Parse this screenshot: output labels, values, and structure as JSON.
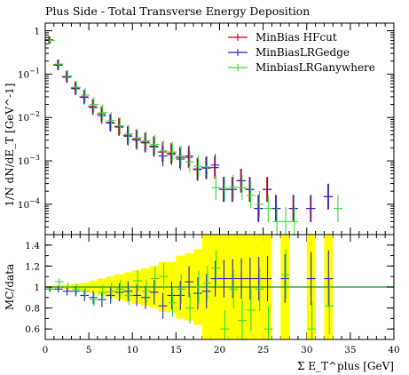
{
  "chart_data": [
    {
      "type": "scatter",
      "title": "Plus Side - Total Transverse Energy Deposition",
      "ylabel": "1/N dN/dE_T [GeV^-1]",
      "yscale": "log",
      "ylim": [
        2e-05,
        1.5
      ],
      "xlim": [
        0,
        40
      ],
      "y_tick_labels": [
        "1",
        "10^-1",
        "10^-2",
        "10^-3",
        "10^-4"
      ],
      "legend_position": "top-right",
      "series": [
        {
          "name": "MinBias HFcut",
          "color": "#cc0000",
          "bin_width": 1,
          "x": [
            0.5,
            1.5,
            2.5,
            3.5,
            4.5,
            5.5,
            6.5,
            7.5,
            8.5,
            9.5,
            10.5,
            11.5,
            12.5,
            13.5,
            14.5,
            15.5,
            16.5,
            17.5,
            18.5,
            19.5,
            20.5,
            21.5,
            22.5,
            23.5,
            24.5,
            25.5,
            26.5,
            27.5,
            28.5,
            29.5,
            30.5,
            31.5,
            32.5,
            33.5
          ],
          "y": [
            0.62,
            0.165,
            0.088,
            0.048,
            0.03,
            0.018,
            0.012,
            0.0077,
            0.0062,
            0.0039,
            0.0032,
            0.0027,
            0.0022,
            0.0016,
            0.0015,
            0.0012,
            0.0012,
            0.00065,
            0.0007,
            0.0007,
            0.00022,
            0.00022,
            0.00035,
            0.00022,
            8e-05,
            0.00022,
            8e-05,
            null,
            8e-05,
            null,
            8e-05,
            null,
            0.00015,
            null
          ]
        },
        {
          "name": "MinBiasLRGedge",
          "color": "#2222cc",
          "bin_width": 1,
          "x": [
            0.5,
            1.5,
            2.5,
            3.5,
            4.5,
            5.5,
            6.5,
            7.5,
            8.5,
            9.5,
            10.5,
            11.5,
            12.5,
            13.5,
            14.5,
            15.5,
            16.5,
            17.5,
            18.5,
            19.5,
            20.5,
            21.5,
            22.5,
            23.5,
            24.5,
            25.5,
            26.5,
            27.5,
            28.5,
            29.5,
            30.5,
            31.5,
            32.5,
            33.5
          ],
          "y": [
            0.6,
            0.16,
            0.085,
            0.046,
            0.029,
            0.017,
            0.011,
            0.0074,
            0.006,
            0.0037,
            0.003,
            0.0026,
            0.0021,
            0.0013,
            0.0014,
            0.0011,
            0.0013,
            0.00063,
            0.00068,
            0.0008,
            0.00022,
            0.00022,
            0.00035,
            0.00022,
            8e-05,
            0.00022,
            8e-05,
            null,
            8e-05,
            null,
            8e-05,
            null,
            0.00015,
            null
          ]
        },
        {
          "name": "MinbiasLRGanywhere",
          "color": "#33dd33",
          "bin_width": 1,
          "x": [
            0.5,
            1.5,
            2.5,
            3.5,
            4.5,
            5.5,
            6.5,
            7.5,
            8.5,
            9.5,
            10.5,
            11.5,
            12.5,
            13.5,
            14.5,
            15.5,
            16.5,
            17.5,
            18.5,
            19.5,
            20.5,
            21.5,
            22.5,
            23.5,
            24.5,
            25.5,
            26.5,
            27.5,
            28.5,
            29.5,
            30.5,
            31.5,
            32.5,
            33.5
          ],
          "y": [
            0.6,
            0.17,
            0.09,
            0.05,
            0.033,
            0.02,
            0.013,
            0.0085,
            0.0064,
            0.0042,
            0.0034,
            0.0029,
            0.0024,
            0.0017,
            0.0016,
            0.0013,
            0.00095,
            0.00075,
            0.00072,
            0.00024,
            0.00023,
            0.00025,
            0.00024,
            0.00016,
            0.0001,
            8e-05,
            4e-05,
            4e-05,
            4e-05,
            null,
            null,
            null,
            null,
            8e-05
          ]
        }
      ]
    },
    {
      "type": "scatter",
      "ylabel": "MC/data",
      "xlabel": "Σ E_T^plus [GeV]",
      "xlim": [
        0,
        40
      ],
      "ylim": [
        0.5,
        1.5
      ],
      "x_ticks": [
        0,
        5,
        10,
        15,
        20,
        25,
        30,
        35,
        40
      ],
      "y_ticks": [
        0.6,
        0.8,
        1,
        1.2,
        1.4
      ],
      "reference_line": {
        "y": 1,
        "color": "#33aa33"
      },
      "uncertainty_band": {
        "color": "#ffff00",
        "x": [
          0.5,
          1.5,
          2.5,
          3.5,
          4.5,
          5.5,
          6.5,
          7.5,
          8.5,
          9.5,
          10.5,
          11.5,
          12.5,
          13.5,
          14.5,
          15.5,
          16.5,
          17.5,
          18.5,
          19.5,
          20.5,
          21.5,
          22.5,
          23.5,
          24.5,
          25.5,
          26.5,
          27.5,
          28.5,
          29.5,
          30.5,
          31.5,
          32.5,
          33.5
        ],
        "half_width": [
          0.01,
          0.015,
          0.02,
          0.03,
          0.04,
          0.06,
          0.08,
          0.1,
          0.12,
          0.14,
          0.16,
          0.18,
          0.2,
          0.24,
          0.24,
          0.3,
          0.32,
          0.36,
          0.5,
          1,
          1,
          1,
          1,
          1,
          1,
          1,
          null,
          1,
          null,
          null,
          1,
          null,
          1,
          null
        ]
      },
      "series": [
        {
          "name": "MinBiasLRGedge",
          "color": "#2222cc",
          "x": [
            0.5,
            1.5,
            2.5,
            3.5,
            4.5,
            5.5,
            6.5,
            7.5,
            8.5,
            9.5,
            10.5,
            11.5,
            12.5,
            13.5,
            14.5,
            15.5,
            16.5,
            17.5,
            18.5,
            19.5,
            20.5,
            21.5,
            22.5,
            23.5,
            24.5,
            25.5,
            26.5,
            27.5,
            28.5,
            29.5,
            30.5,
            31.5,
            32.5,
            33.5
          ],
          "y": [
            0.98,
            0.98,
            0.96,
            0.96,
            0.92,
            0.9,
            0.88,
            0.92,
            0.95,
            0.96,
            0.92,
            0.9,
            0.95,
            0.82,
            0.92,
            0.92,
            1.05,
            0.94,
            0.96,
            1.08,
            1.08,
            1.08,
            1.08,
            1.08,
            1.08,
            1.08,
            null,
            1.08,
            null,
            null,
            1.08,
            null,
            1.08,
            null
          ]
        },
        {
          "name": "MinbiasLRGanywhere",
          "color": "#33dd33",
          "x": [
            0.5,
            1.5,
            2.5,
            3.5,
            4.5,
            5.5,
            6.5,
            7.5,
            8.5,
            9.5,
            10.5,
            11.5,
            12.5,
            13.5,
            14.5,
            15.5,
            16.5,
            17.5,
            18.5,
            19.5,
            20.5,
            21.5,
            22.5,
            23.5,
            24.5,
            25.5,
            26.5,
            27.5,
            28.5,
            29.5,
            30.5,
            31.5,
            32.5,
            33.5
          ],
          "y": [
            0.98,
            1.05,
            1.0,
            0.98,
            0.96,
            0.88,
            0.95,
            0.96,
            0.98,
            0.92,
            1.06,
            0.96,
            1.08,
            1.1,
            0.85,
            0.98,
            0.8,
            1.0,
            1.04,
            1.18,
            0.6,
            0.98,
            0.68,
            0.78,
            0.98,
            0.6,
            null,
            1.12,
            null,
            null,
            0.6,
            null,
            0.82,
            null
          ]
        }
      ]
    }
  ]
}
